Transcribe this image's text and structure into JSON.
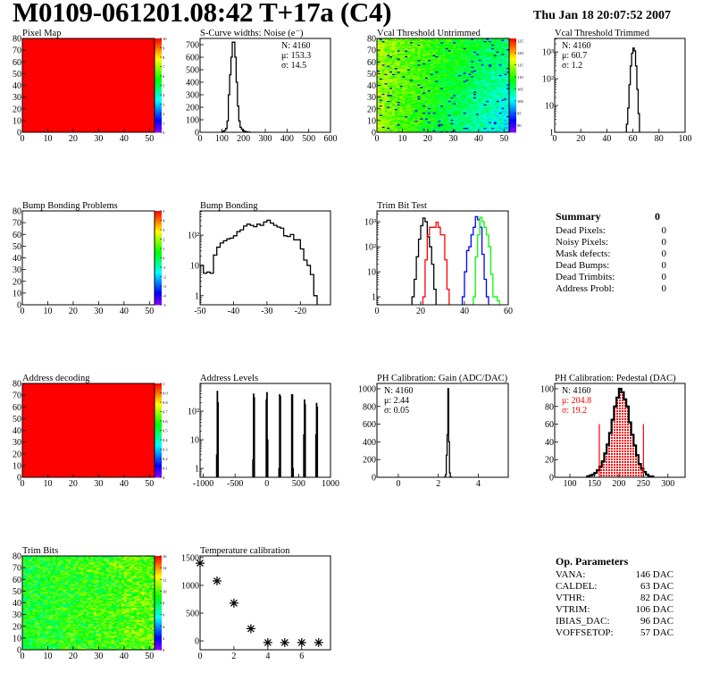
{
  "header": {
    "title": "M0109-061201.08:42 T+17a (C4)",
    "date": "Thu Jan 18 20:07:52 2007"
  },
  "summary": {
    "title": "Summary",
    "total": "0",
    "items": [
      {
        "label": "Dead Pixels:",
        "value": "0"
      },
      {
        "label": "Noisy Pixels:",
        "value": "0"
      },
      {
        "label": "Mask defects:",
        "value": "0"
      },
      {
        "label": "Dead Bumps:",
        "value": "0"
      },
      {
        "label": "Dead Trimbits:",
        "value": "0"
      },
      {
        "label": "Address Probl:",
        "value": "0"
      }
    ]
  },
  "op_parameters": {
    "title": "Op. Parameters",
    "items": [
      {
        "label": "VANA:",
        "value": "146 DAC"
      },
      {
        "label": "CALDEL:",
        "value": "63 DAC"
      },
      {
        "label": "VTHR:",
        "value": "82 DAC"
      },
      {
        "label": "VTRIM:",
        "value": "106 DAC"
      },
      {
        "label": "IBIAS_DAC:",
        "value": "96 DAC"
      },
      {
        "label": "VOFFSETOP:",
        "value": "57 DAC"
      }
    ]
  },
  "colors": {
    "palette": "rainbow violet-to-red",
    "red": "#ff0000",
    "blue": "#0000ff",
    "green": "#00ff00"
  },
  "chart_data": [
    {
      "type": "heatmap",
      "title": "Pixel Map",
      "cells": {
        "cols": 52,
        "rows": 80
      },
      "fill_value": 10,
      "xlim": [
        0,
        52
      ],
      "ylim": [
        0,
        80
      ],
      "zlim": [
        0,
        10
      ],
      "xticks": [
        0,
        10,
        20,
        30,
        40,
        50
      ],
      "yticks": [
        0,
        10,
        20,
        30,
        40,
        50,
        60,
        70,
        80
      ],
      "colorbar_ticks": [
        "0",
        "1",
        "2",
        "3",
        "4",
        "5",
        "6",
        "7",
        "8",
        "9",
        "10"
      ]
    },
    {
      "type": "bar",
      "title": "S-Curve widths: Noise (e⁻)",
      "xlim": [
        0,
        600
      ],
      "ylim": [
        0,
        750
      ],
      "xticks": [
        0,
        100,
        200,
        300,
        400,
        500,
        600
      ],
      "yticks": [
        0,
        100,
        200,
        300,
        400,
        500,
        600,
        700
      ],
      "bins": {
        "start": 100,
        "width": 6,
        "values": [
          5,
          10,
          15,
          30,
          90,
          300,
          460,
          600,
          720,
          720,
          600,
          400,
          210,
          90,
          40,
          25,
          12,
          8,
          5,
          3,
          2,
          1
        ]
      },
      "stats": [
        {
          "text": "N: 4160"
        },
        {
          "text": "μ: 153.3"
        },
        {
          "text": "σ: 14.5"
        }
      ],
      "stats_pos": "right"
    },
    {
      "type": "heatmap",
      "title": "Vcal Threshold Untrimmed",
      "cells": {
        "cols": 52,
        "rows": 80
      },
      "typical_z": [
        96,
        114
      ],
      "trend": "higher on left, lower on lower right",
      "xlim": [
        0,
        52
      ],
      "ylim": [
        0,
        80
      ],
      "zlim": [
        87,
        126
      ],
      "xticks": [
        0,
        10,
        20,
        30,
        40,
        50
      ],
      "yticks": [
        0,
        10,
        20,
        30,
        40,
        50,
        60,
        70,
        80
      ],
      "colorbar_ticks": [
        "90",
        "95",
        "100",
        "105",
        "110",
        "115",
        "120",
        "125"
      ]
    },
    {
      "type": "bar",
      "title": "Vcal Threshold Trimmed",
      "xlim": [
        0,
        100
      ],
      "ylim": [
        1,
        3200
      ],
      "yscale": "log",
      "xticks": [
        0,
        20,
        40,
        60,
        80,
        100
      ],
      "yticks": [
        1,
        10,
        100,
        1000
      ],
      "ytick_labels": [
        "1",
        "10",
        "10²",
        "10³"
      ],
      "bins": {
        "start": 55,
        "width": 1,
        "values": [
          2,
          8,
          60,
          300,
          900,
          1400,
          1100,
          300,
          40,
          5
        ]
      },
      "stats": [
        {
          "text": "N: 4160"
        },
        {
          "text": "μ: 60.7"
        },
        {
          "text": "σ:  1.2"
        }
      ],
      "stats_pos": "left"
    },
    {
      "type": "heatmap",
      "title": "Bump Bonding Problems",
      "cells": {
        "cols": 52,
        "rows": 80
      },
      "fill_value": null,
      "xlim": [
        0,
        52
      ],
      "ylim": [
        0,
        80
      ],
      "zlim": [
        -5,
        5
      ],
      "xticks": [
        0,
        10,
        20,
        30,
        40,
        50
      ],
      "yticks": [
        0,
        10,
        20,
        30,
        40,
        50,
        60,
        70,
        80
      ],
      "colorbar_ticks": [
        "-5",
        "-4",
        "-3",
        "-2",
        "-1",
        "0",
        "1",
        "2",
        "3",
        "4",
        "5"
      ]
    },
    {
      "type": "bar",
      "title": "Bump Bonding",
      "xlim": [
        -50,
        -11
      ],
      "ylim": [
        0.5,
        630
      ],
      "yscale": "log",
      "xticks": [
        -50,
        -40,
        -30,
        -20
      ],
      "yticks": [
        1,
        10,
        100
      ],
      "ytick_labels": [
        "1",
        "10",
        "10²"
      ],
      "bins": {
        "start": -50,
        "width": 1,
        "values": [
          10,
          5.5,
          6,
          5.5,
          22,
          40,
          55,
          65,
          75,
          80,
          95,
          130,
          150,
          200,
          230,
          210,
          190,
          230,
          210,
          270,
          310,
          250,
          210,
          185,
          170,
          95,
          90,
          105,
          70,
          70,
          35,
          15,
          10,
          5,
          1
        ]
      }
    },
    {
      "type": "bar",
      "title": "Trim Bit Test",
      "xlim": [
        0,
        60
      ],
      "ylim": [
        0.48,
        2700
      ],
      "yscale": "log",
      "xticks": [
        0,
        20,
        40,
        60
      ],
      "yticks": [
        1,
        10,
        100,
        1000
      ],
      "ytick_labels": [
        "1",
        "10",
        "10²",
        "10³"
      ],
      "series": [
        {
          "color": "#000000",
          "bins": {
            "start": 16,
            "width": 1,
            "values": [
              1,
              5,
              40,
              200,
              700,
              1400,
              1000,
              250,
              100,
              20,
              2
            ]
          }
        },
        {
          "color": "#ff0000",
          "bins": {
            "start": 21,
            "width": 1,
            "values": [
              1,
              30,
              300,
              600,
              600,
              600,
              950,
              600,
              300,
              300,
              30,
              2
            ]
          }
        },
        {
          "color": "#0000ff",
          "bins": {
            "start": 39,
            "width": 1,
            "values": [
              1,
              10,
              70,
              100,
              300,
              600,
              1600,
              1200,
              600,
              50,
              5,
              1
            ]
          }
        },
        {
          "color": "#00ff00",
          "bins": {
            "start": 44,
            "width": 1,
            "values": [
              1,
              40,
              300,
              1500,
              1000,
              600,
              300,
              100,
              8,
              1,
              1,
              0.7
            ]
          }
        }
      ]
    },
    {
      "type": "heatmap",
      "title": "Address decoding",
      "cells": {
        "cols": 52,
        "rows": 80
      },
      "fill_value": 1,
      "xlim": [
        0,
        52
      ],
      "ylim": [
        0,
        80
      ],
      "zlim": [
        0,
        1
      ],
      "xticks": [
        0,
        10,
        20,
        30,
        40,
        50
      ],
      "yticks": [
        0,
        10,
        20,
        30,
        40,
        50,
        60,
        70,
        80
      ],
      "colorbar_ticks": [
        "0",
        "0.1",
        "0.2",
        "0.3",
        "0.4",
        "0.5",
        "0.6",
        "0.7",
        "0.8",
        "0.9",
        "1"
      ]
    },
    {
      "type": "bar",
      "title": "Address Levels",
      "xlim": [
        -1050,
        1000
      ],
      "ylim": [
        0.49,
        930
      ],
      "yscale": "log",
      "xticks": [
        -1000,
        -500,
        0,
        500,
        1000
      ],
      "yticks": [
        1,
        10,
        100
      ],
      "ytick_labels": [
        "1",
        "10",
        "10²"
      ],
      "spike_width": 10,
      "spikes": [
        [
          -790,
          3
        ],
        [
          -780,
          500
        ],
        [
          -770,
          200
        ],
        [
          -220,
          2
        ],
        [
          -210,
          400
        ],
        [
          -200,
          300
        ],
        [
          -10,
          250
        ],
        [
          0,
          450
        ],
        [
          10,
          10
        ],
        [
          190,
          1
        ],
        [
          200,
          380
        ],
        [
          210,
          330
        ],
        [
          390,
          380
        ],
        [
          400,
          380
        ],
        [
          410,
          1
        ],
        [
          580,
          15
        ],
        [
          590,
          250
        ],
        [
          600,
          170
        ],
        [
          770,
          15
        ],
        [
          780,
          190
        ],
        [
          790,
          140
        ]
      ]
    },
    {
      "type": "bar",
      "title": "PH Calibration: Gain (ADC/DAC)",
      "xlim": [
        -1.07,
        5.5
      ],
      "ylim": [
        0,
        1060
      ],
      "xticks": [
        0,
        2,
        4
      ],
      "yticks": [
        0,
        200,
        400,
        600,
        800,
        1000
      ],
      "bins": {
        "start": 2.32,
        "width": 0.04,
        "values": [
          5,
          30,
          250,
          480,
          1000,
          400,
          50,
          5
        ]
      },
      "stats": [
        {
          "text": "N: 4160"
        },
        {
          "text": "μ: 2.44"
        },
        {
          "text": "σ: 0.05"
        }
      ],
      "stats_pos": "left"
    },
    {
      "type": "bar",
      "title": "PH Calibration: Pedestal (DAC)",
      "xlim": [
        69,
        335
      ],
      "ylim": [
        0,
        106
      ],
      "xticks": [
        100,
        150,
        200,
        250,
        300
      ],
      "yticks": [
        0,
        20,
        40,
        60,
        80,
        100
      ],
      "bins": {
        "start": 135,
        "width": 5,
        "values": [
          1,
          2,
          3,
          5,
          8,
          12,
          18,
          27,
          37,
          50,
          65,
          80,
          90,
          100,
          96,
          88,
          80,
          62,
          48,
          36,
          25,
          15,
          10,
          6,
          3,
          1,
          1
        ]
      },
      "fit_range": [
        160,
        250
      ],
      "fit_range_marker_height": 60,
      "fit_color": "#ff0000",
      "stats": [
        {
          "text": "N: 4160"
        },
        {
          "text": "μ: 204.8",
          "color": "#ff0000"
        },
        {
          "text": "σ: 19.2",
          "color": "#ff0000"
        }
      ],
      "stats_pos": "left"
    },
    {
      "type": "heatmap",
      "title": "Trim Bits",
      "cells": {
        "cols": 52,
        "rows": 80
      },
      "typical_z": [
        7,
        12
      ],
      "trend": "slightly higher on right",
      "xlim": [
        0,
        52
      ],
      "ylim": [
        0,
        80
      ],
      "zlim": [
        0,
        16
      ],
      "xticks": [
        0,
        10,
        20,
        30,
        40,
        50
      ],
      "yticks": [
        0,
        10,
        20,
        30,
        40,
        50,
        60,
        70,
        80
      ],
      "colorbar_ticks": [
        "0",
        "2",
        "4",
        "6",
        "8",
        "10",
        "12",
        "14",
        "16"
      ]
    },
    {
      "type": "scatter",
      "title": "Temperature calibration",
      "xlim": [
        0,
        7.7
      ],
      "ylim": [
        -160,
        1530
      ],
      "xticks": [
        0,
        2,
        4,
        6
      ],
      "yticks": [
        0,
        500,
        1000,
        1500
      ],
      "marker": "star",
      "x": [
        0,
        1,
        2,
        3,
        4,
        5,
        6,
        7
      ],
      "y": [
        1400,
        1080,
        680,
        220,
        -30,
        -30,
        -30,
        -30
      ]
    }
  ]
}
